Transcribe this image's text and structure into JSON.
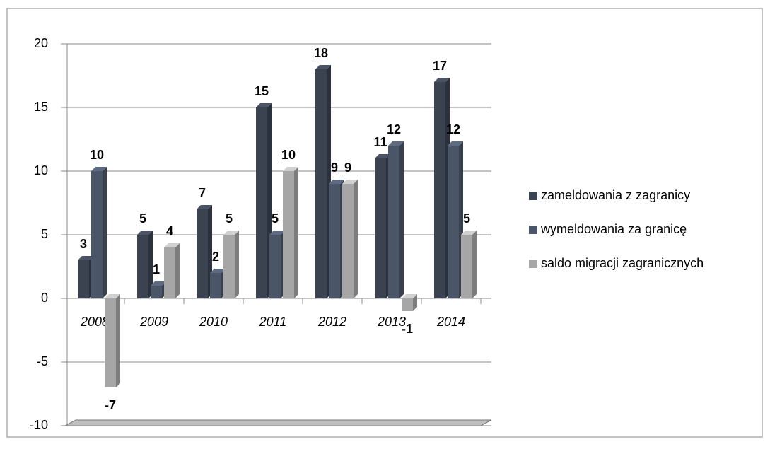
{
  "chart_data": {
    "type": "bar",
    "categories": [
      "2008",
      "2009",
      "2010",
      "2011",
      "2012",
      "2013",
      "2014"
    ],
    "series": [
      {
        "name": "zameldowania z zagranicy",
        "color": "#3b4351",
        "values": [
          3,
          5,
          7,
          15,
          18,
          11,
          17
        ]
      },
      {
        "name": "wymeldowania za granicę",
        "color": "#4a5567",
        "values": [
          10,
          1,
          2,
          5,
          9,
          12,
          12
        ]
      },
      {
        "name": "saldo migracji zagranicznych",
        "color": "#a6a6a6",
        "values": [
          -7,
          4,
          5,
          10,
          9,
          -1,
          5
        ]
      }
    ],
    "ylim": [
      -10,
      20
    ],
    "yticks": [
      -10,
      -5,
      0,
      5,
      10,
      15,
      20
    ],
    "grid": true,
    "legend": "right"
  }
}
